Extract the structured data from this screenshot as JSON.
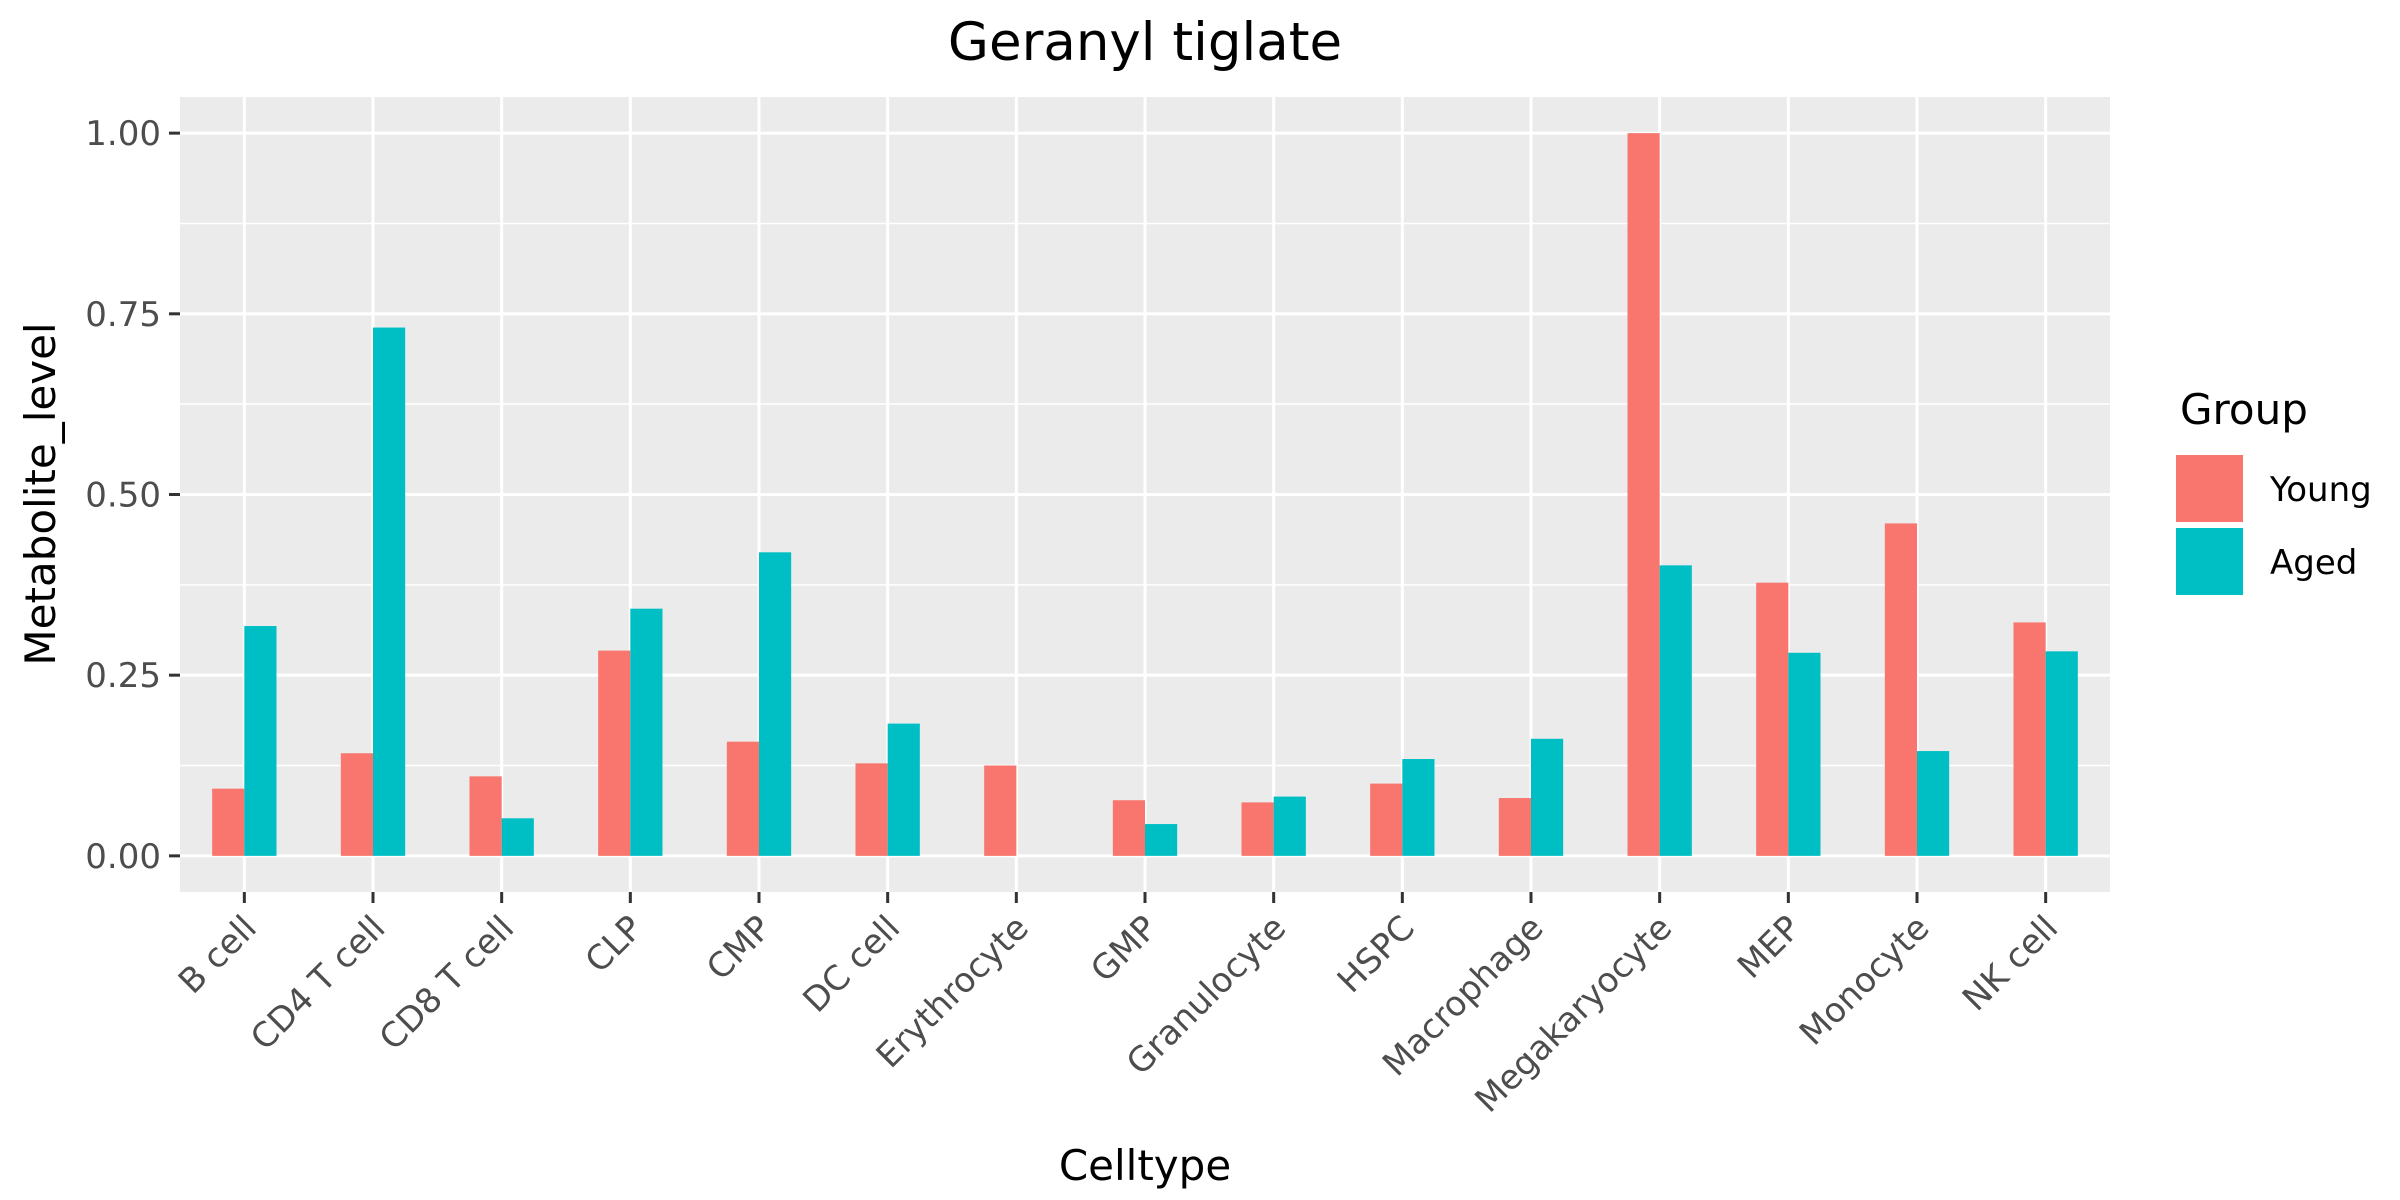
{
  "chart_data": {
    "type": "bar",
    "title": "Geranyl tiglate",
    "xlabel": "Celltype",
    "ylabel": "Metabolite_level",
    "categories": [
      "B cell",
      "CD4 T cell",
      "CD8 T cell",
      "CLP",
      "CMP",
      "DC cell",
      "Erythrocyte",
      "GMP",
      "Granulocyte",
      "HSPC",
      "Macrophage",
      "Megakaryocyte",
      "MEP",
      "Monocyte",
      "NK cell"
    ],
    "series": [
      {
        "name": "Young",
        "color": "#F8766D",
        "values": [
          0.093,
          0.142,
          0.11,
          0.284,
          0.158,
          0.128,
          0.125,
          0.077,
          0.074,
          0.1,
          0.08,
          1.0,
          0.378,
          0.46,
          0.323
        ]
      },
      {
        "name": "Aged",
        "color": "#00BFC4",
        "values": [
          0.318,
          0.731,
          0.052,
          0.342,
          0.42,
          0.183,
          0.0,
          0.044,
          0.082,
          0.134,
          0.162,
          0.402,
          0.281,
          0.145,
          0.283
        ]
      }
    ],
    "ylim": [
      -0.05,
      1.05
    ],
    "yticks": [
      0,
      0.25,
      0.5,
      0.75,
      1.0
    ],
    "ytick_labels": [
      "0.00",
      "0.25",
      "0.50",
      "0.75",
      "1.00"
    ],
    "grid": true,
    "legend": {
      "title": "Group",
      "position": "right"
    },
    "panel_color": "#EBEBEB"
  }
}
